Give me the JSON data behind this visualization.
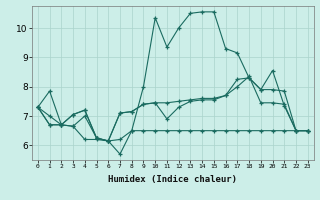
{
  "xlabel": "Humidex (Indice chaleur)",
  "background_color": "#cceee8",
  "grid_color": "#aad4cc",
  "line_color": "#1a6b60",
  "xlim": [
    -0.5,
    23.5
  ],
  "ylim": [
    5.5,
    10.75
  ],
  "yticks": [
    6,
    7,
    8,
    9,
    10
  ],
  "xticks": [
    0,
    1,
    2,
    3,
    4,
    5,
    6,
    7,
    8,
    9,
    10,
    11,
    12,
    13,
    14,
    15,
    16,
    17,
    18,
    19,
    20,
    21,
    22,
    23
  ],
  "lines": [
    [
      7.3,
      7.85,
      6.7,
      6.65,
      6.2,
      6.2,
      6.15,
      5.7,
      6.5,
      8.0,
      10.35,
      9.35,
      10.0,
      10.5,
      10.55,
      10.55,
      9.3,
      9.15,
      8.3,
      7.9,
      8.55,
      7.35,
      6.5,
      6.5
    ],
    [
      7.3,
      7.0,
      6.7,
      7.05,
      7.2,
      6.25,
      6.15,
      7.1,
      7.15,
      7.4,
      7.45,
      6.9,
      7.3,
      7.5,
      7.55,
      7.55,
      7.7,
      8.25,
      8.3,
      7.9,
      7.9,
      7.85,
      6.5,
      6.5
    ],
    [
      7.3,
      6.7,
      6.7,
      6.65,
      7.0,
      6.25,
      6.15,
      6.2,
      6.5,
      6.5,
      6.5,
      6.5,
      6.5,
      6.5,
      6.5,
      6.5,
      6.5,
      6.5,
      6.5,
      6.5,
      6.5,
      6.5,
      6.5,
      6.5
    ],
    [
      7.3,
      6.7,
      6.7,
      7.05,
      7.2,
      6.25,
      6.15,
      7.1,
      7.15,
      7.4,
      7.45,
      7.45,
      7.5,
      7.55,
      7.6,
      7.6,
      7.7,
      8.0,
      8.35,
      7.45,
      7.45,
      7.4,
      6.5,
      6.5
    ]
  ]
}
